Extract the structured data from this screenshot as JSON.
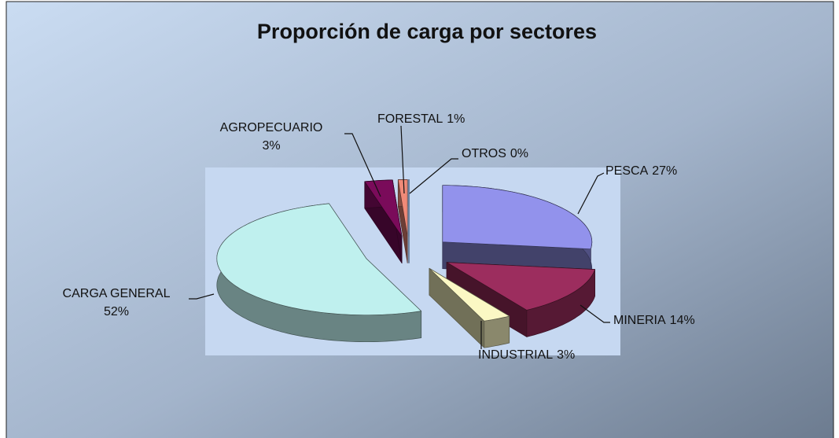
{
  "chart_data": {
    "type": "pie",
    "title": "Proporción de carga por sectores",
    "categories": [
      "PESCA",
      "MINERIA",
      "INDUSTRIAL",
      "CARGA GENERAL",
      "AGROPECUARIO",
      "FORESTAL",
      "OTROS"
    ],
    "values": [
      27,
      14,
      3,
      52,
      3,
      1,
      0
    ],
    "value_labels": [
      "27%",
      "14%",
      "3%",
      "52%",
      "3%",
      "1%",
      "0%"
    ],
    "colors": [
      "#9292ec",
      "#9c2d5e",
      "#fbf8c4",
      "#bff0ee",
      "#7a0b5a",
      "#f08a78",
      "#1a66c8"
    ]
  }
}
